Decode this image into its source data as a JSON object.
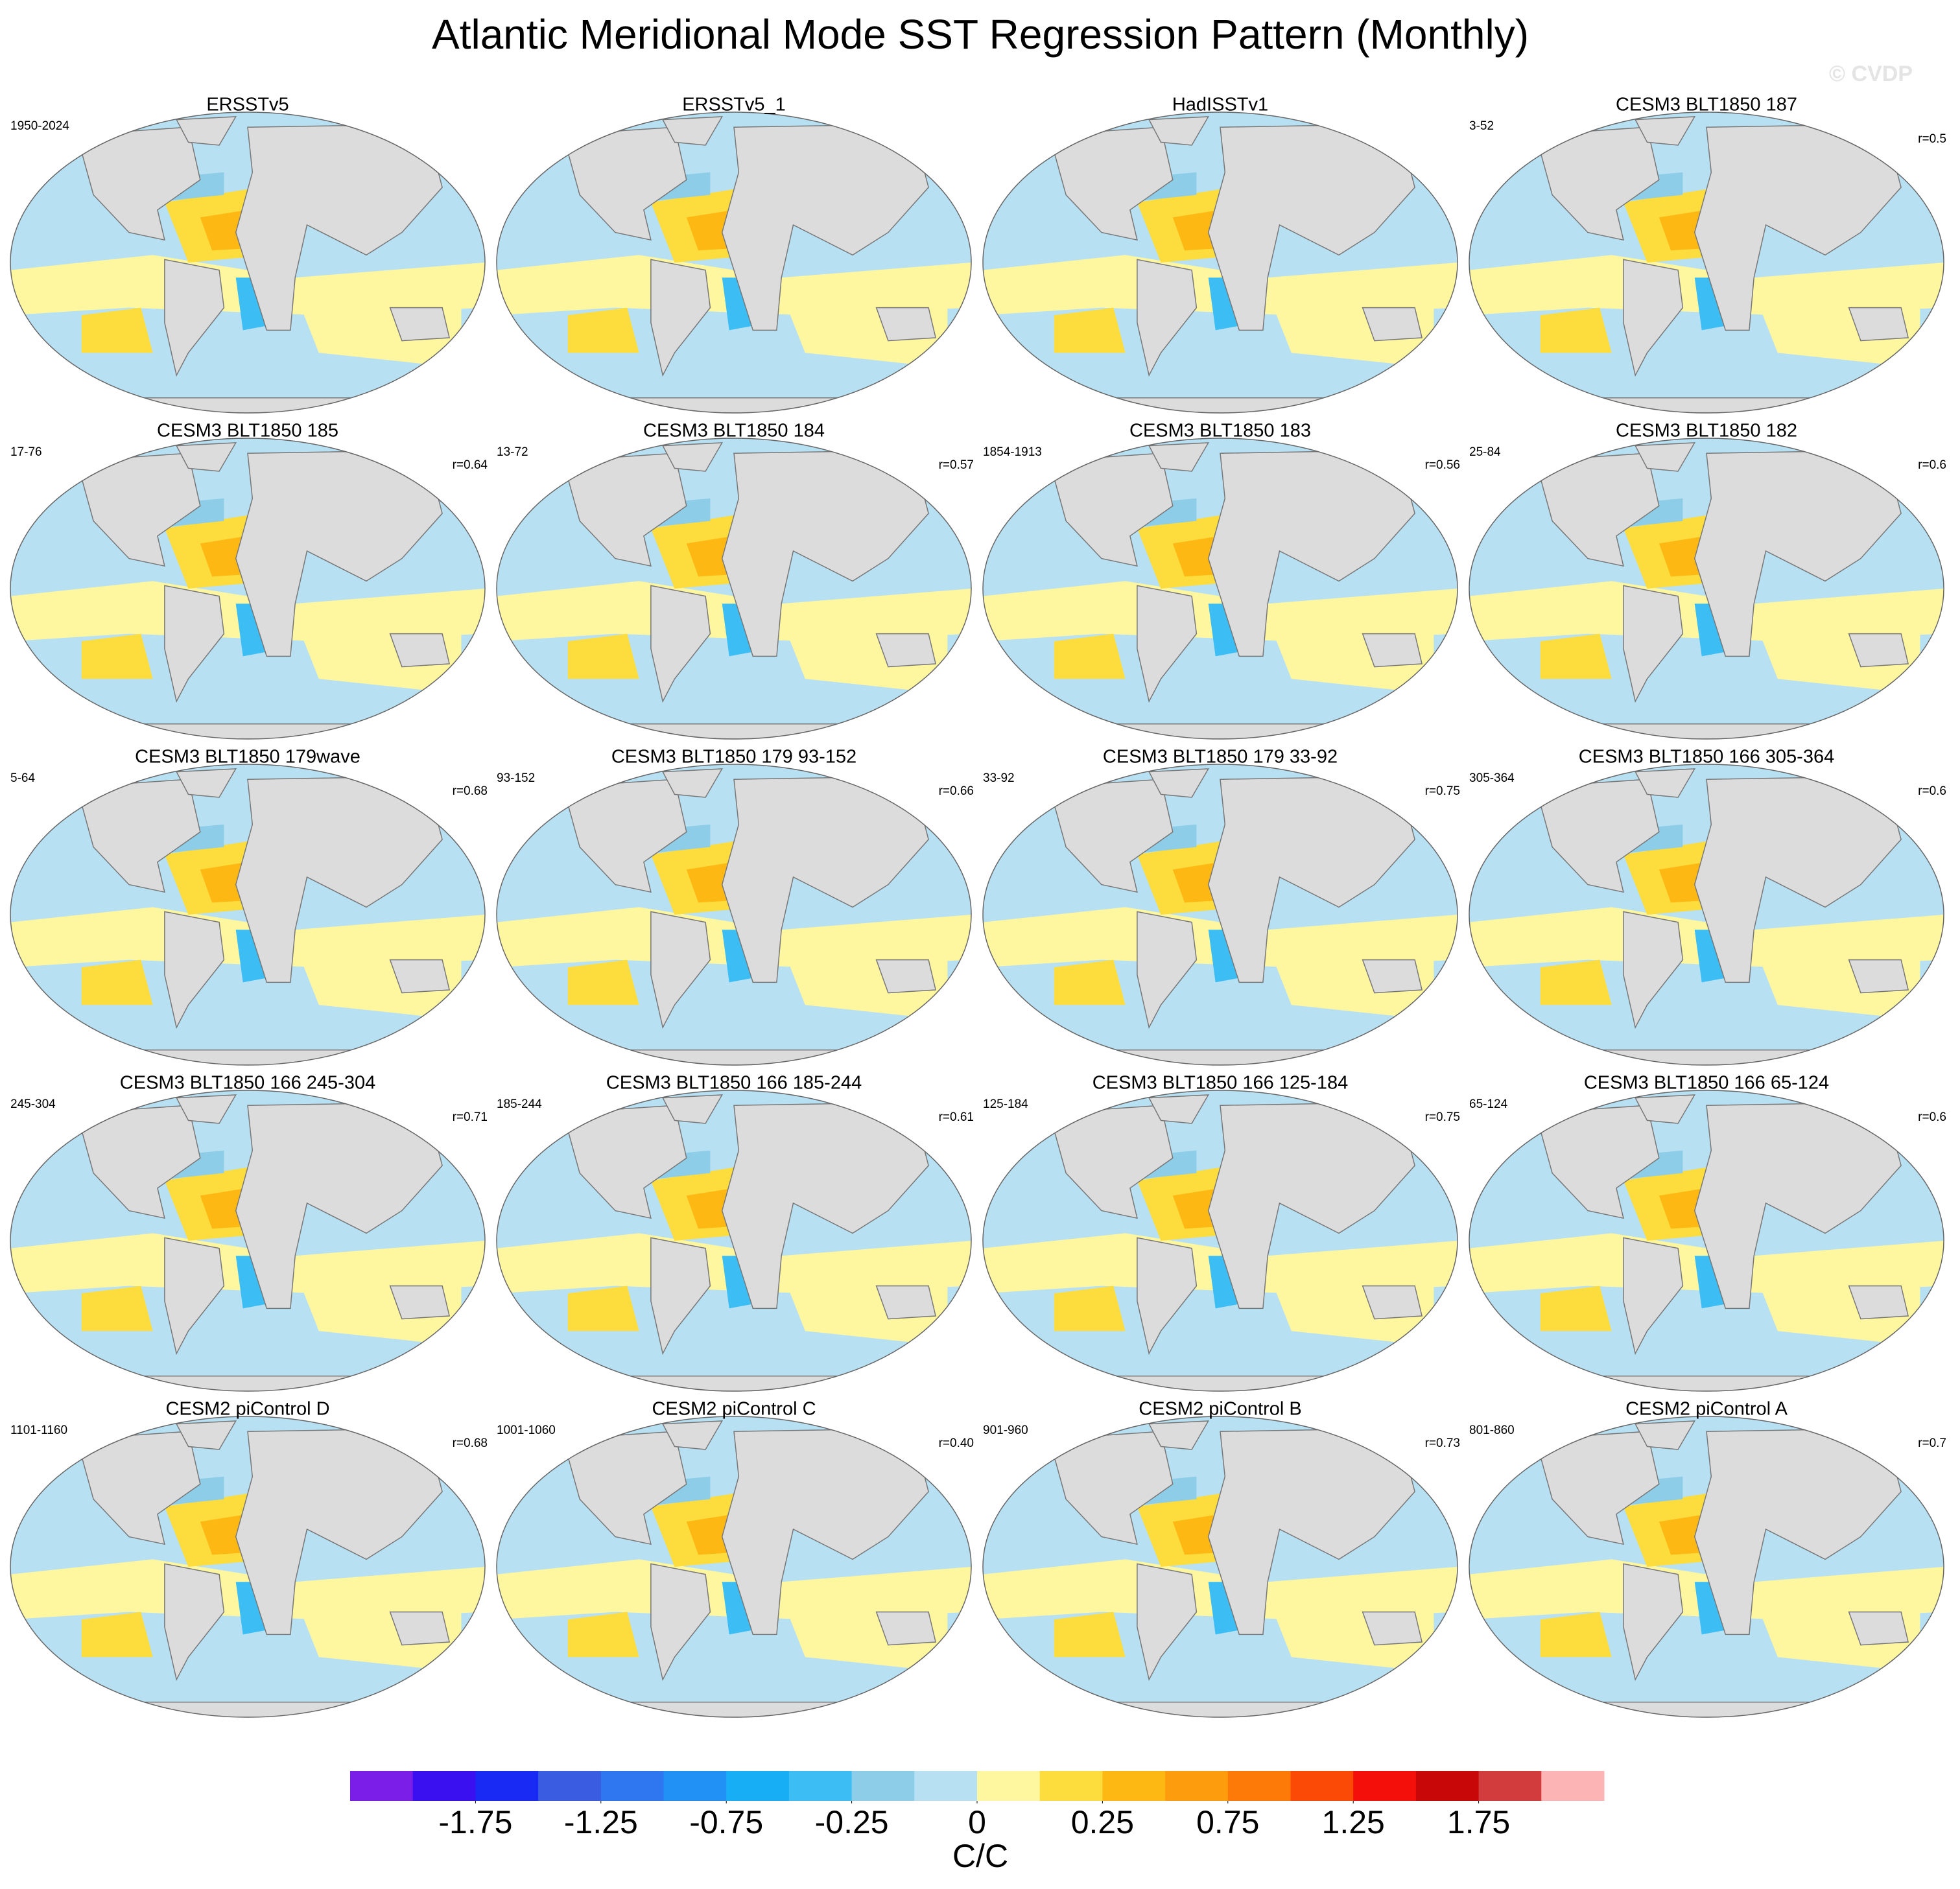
{
  "title": "Atlantic Meridional Mode SST Regression Pattern (Monthly)",
  "watermark": "© CVDP",
  "panels": [
    {
      "title": "ERSSTv5",
      "period": "1950-2024"
    },
    {
      "title": "ERSSTv5_1"
    },
    {
      "title": "HadISSTv1"
    },
    {
      "title": "CESM3 BLT1850 187",
      "period": "3-52",
      "r": "r=0.5"
    },
    {
      "title": "CESM3 BLT1850 185",
      "period": "17-76",
      "r": "r=0.64"
    },
    {
      "title": "CESM3 BLT1850 184",
      "period": "13-72",
      "r": "r=0.57"
    },
    {
      "title": "CESM3 BLT1850 183",
      "period": "1854-1913",
      "r": "r=0.56"
    },
    {
      "title": "CESM3 BLT1850 182",
      "period": "25-84",
      "r": "r=0.6"
    },
    {
      "title": "CESM3 BLT1850 179wave",
      "period": "5-64",
      "r": "r=0.68"
    },
    {
      "title": "CESM3 BLT1850 179 93-152",
      "period": "93-152",
      "r": "r=0.66"
    },
    {
      "title": "CESM3 BLT1850 179 33-92",
      "period": "33-92",
      "r": "r=0.75"
    },
    {
      "title": "CESM3 BLT1850 166 305-364",
      "period": "305-364",
      "r": "r=0.6"
    },
    {
      "title": "CESM3 BLT1850 166 245-304",
      "period": "245-304",
      "r": "r=0.71"
    },
    {
      "title": "CESM3 BLT1850 166 185-244",
      "period": "185-244",
      "r": "r=0.61"
    },
    {
      "title": "CESM3 BLT1850 166 125-184",
      "period": "125-184",
      "r": "r=0.75"
    },
    {
      "title": "CESM3 BLT1850 166 65-124",
      "period": "65-124",
      "r": "r=0.6"
    },
    {
      "title": "CESM2 piControl D",
      "period": "1101-1160",
      "r": "r=0.68"
    },
    {
      "title": "CESM2 piControl C",
      "period": "1001-1060",
      "r": "r=0.40"
    },
    {
      "title": "CESM2 piControl B",
      "period": "901-960",
      "r": "r=0.73"
    },
    {
      "title": "CESM2 piControl A",
      "period": "801-860",
      "r": "r=0.7"
    }
  ],
  "colorbar": {
    "colors": [
      "#7a1ee8",
      "#3a10f0",
      "#1a2af5",
      "#3a5ce0",
      "#2e77f0",
      "#2291f5",
      "#17aef5",
      "#3cbef5",
      "#8ecde8",
      "#b8e0f3",
      "#fff6a0",
      "#fddc3e",
      "#fdb813",
      "#fd9c0d",
      "#fd7a08",
      "#fa4a06",
      "#f50f0a",
      "#c80808",
      "#d23c3c",
      "#fdb4b4"
    ],
    "ticks": [
      -1.75,
      -1.25,
      -0.75,
      -0.25,
      0,
      0.25,
      0.75,
      1.25,
      1.75
    ],
    "label": "C/C"
  }
}
